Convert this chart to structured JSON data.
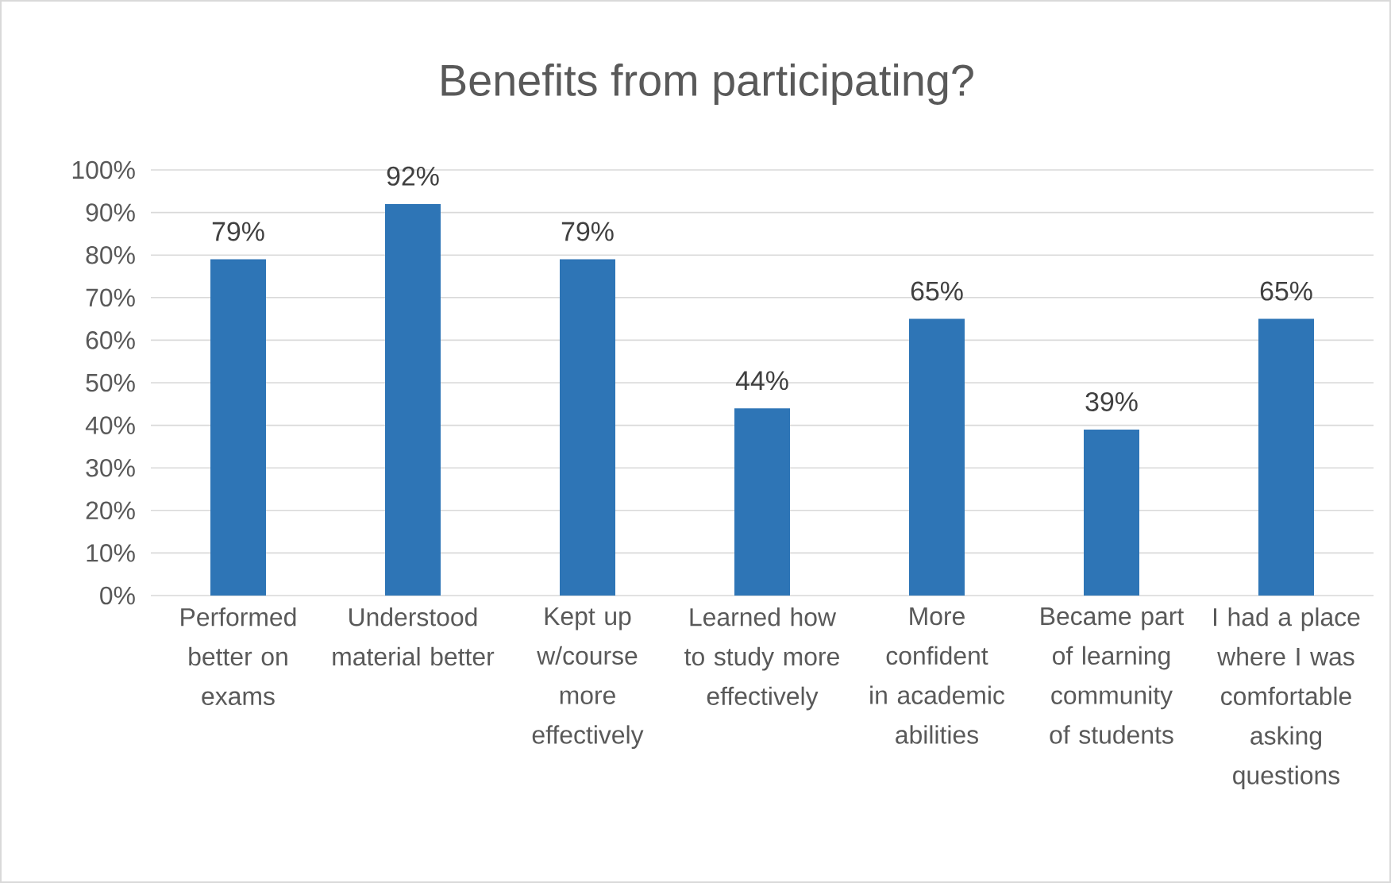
{
  "chart_data": {
    "type": "bar",
    "title": "Benefits from participating?",
    "categories": [
      "Performed better on exams",
      "Understood material better",
      "Kept up w/course more effectively",
      "Learned how to study more effectively",
      "More confident in academic abilities",
      "Became part of learning community of students",
      "I had a place where I was comfortable asking questions"
    ],
    "values": [
      79,
      92,
      79,
      44,
      65,
      39,
      65
    ],
    "value_labels": [
      "79%",
      "92%",
      "79%",
      "44%",
      "65%",
      "39%",
      "65%"
    ],
    "color": "#2e75b6",
    "ylim": [
      0,
      100
    ],
    "yticks": [
      {
        "value": 0,
        "label": "0%"
      },
      {
        "value": 10,
        "label": "10%"
      },
      {
        "value": 20,
        "label": "20%"
      },
      {
        "value": 30,
        "label": "30%"
      },
      {
        "value": 40,
        "label": "40%"
      },
      {
        "value": 50,
        "label": "50%"
      },
      {
        "value": 60,
        "label": "60%"
      },
      {
        "value": 70,
        "label": "70%"
      },
      {
        "value": 80,
        "label": "80%"
      },
      {
        "value": 90,
        "label": "90%"
      },
      {
        "value": 100,
        "label": "100%"
      }
    ],
    "grid": "y"
  }
}
